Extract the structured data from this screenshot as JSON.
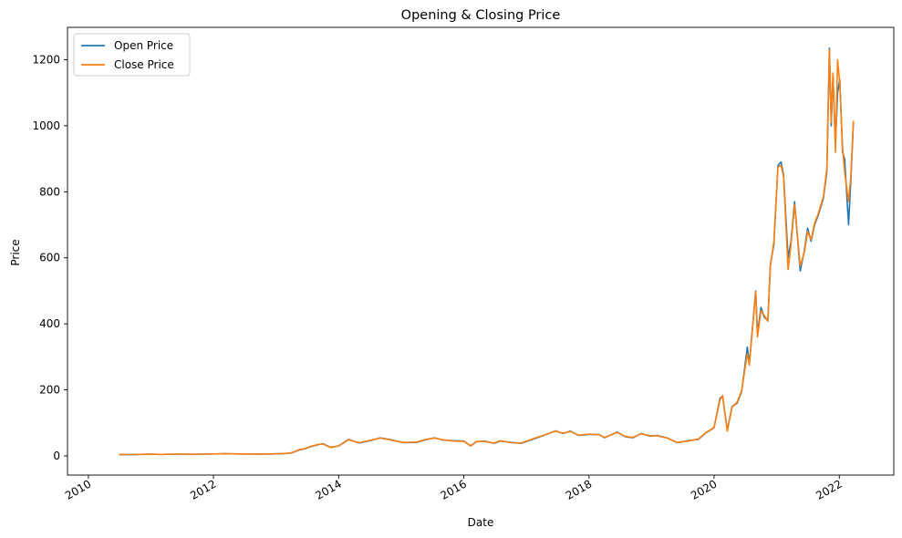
{
  "chart_data": {
    "type": "line",
    "title": "Opening & Closing Price",
    "xlabel": "Date",
    "ylabel": "Price",
    "xlim": [
      "2009-09-01",
      "2022-11-15"
    ],
    "ylim": [
      -58,
      1298
    ],
    "x_ticks": [
      "2010",
      "2012",
      "2014",
      "2016",
      "2018",
      "2020",
      "2022"
    ],
    "y_ticks": [
      0,
      200,
      400,
      600,
      800,
      1000,
      1200
    ],
    "grid": false,
    "legend_position": "top-left",
    "series": [
      {
        "name": "Open Price",
        "color": "#1f77b4",
        "points": [
          [
            "2010-06-29",
            3.8
          ],
          [
            "2010-10-01",
            4.2
          ],
          [
            "2010-12-15",
            5.5
          ],
          [
            "2011-03-01",
            4.7
          ],
          [
            "2011-06-01",
            5.6
          ],
          [
            "2011-09-01",
            5.1
          ],
          [
            "2011-12-01",
            5.5
          ],
          [
            "2012-03-01",
            6.8
          ],
          [
            "2012-06-01",
            6.2
          ],
          [
            "2012-09-01",
            5.7
          ],
          [
            "2012-12-01",
            5.8
          ],
          [
            "2013-03-01",
            7.5
          ],
          [
            "2013-04-01",
            9.0
          ],
          [
            "2013-05-15",
            18.0
          ],
          [
            "2013-06-15",
            21.0
          ],
          [
            "2013-07-15",
            27.0
          ],
          [
            "2013-09-01",
            34.0
          ],
          [
            "2013-10-01",
            37.0
          ],
          [
            "2013-11-15",
            26.0
          ],
          [
            "2013-12-31",
            30.0
          ],
          [
            "2014-02-15",
            45.0
          ],
          [
            "2014-03-01",
            50.0
          ],
          [
            "2014-05-01",
            39.0
          ],
          [
            "2014-07-01",
            46.0
          ],
          [
            "2014-09-01",
            55.0
          ],
          [
            "2014-11-01",
            49.0
          ],
          [
            "2015-01-15",
            40.0
          ],
          [
            "2015-04-01",
            41.0
          ],
          [
            "2015-06-01",
            50.0
          ],
          [
            "2015-07-15",
            55.0
          ],
          [
            "2015-09-01",
            48.0
          ],
          [
            "2015-11-01",
            46.0
          ],
          [
            "2016-01-01",
            45.0
          ],
          [
            "2016-02-10",
            30.0
          ],
          [
            "2016-03-15",
            43.0
          ],
          [
            "2016-05-01",
            45.0
          ],
          [
            "2016-06-25",
            38.0
          ],
          [
            "2016-08-01",
            45.0
          ],
          [
            "2016-10-01",
            41.0
          ],
          [
            "2016-12-01",
            38.0
          ],
          [
            "2017-02-15",
            52.0
          ],
          [
            "2017-04-01",
            60.0
          ],
          [
            "2017-06-20",
            76.0
          ],
          [
            "2017-08-01",
            68.0
          ],
          [
            "2017-09-15",
            75.0
          ],
          [
            "2017-11-01",
            62.0
          ],
          [
            "2018-01-01",
            65.0
          ],
          [
            "2018-03-01",
            65.0
          ],
          [
            "2018-04-01",
            55.0
          ],
          [
            "2018-06-15",
            72.0
          ],
          [
            "2018-08-01",
            58.0
          ],
          [
            "2018-09-15",
            55.0
          ],
          [
            "2018-11-01",
            68.0
          ],
          [
            "2018-12-24",
            60.0
          ],
          [
            "2019-02-01",
            62.0
          ],
          [
            "2019-04-01",
            55.0
          ],
          [
            "2019-06-01",
            40.0
          ],
          [
            "2019-08-01",
            46.0
          ],
          [
            "2019-10-01",
            50.0
          ],
          [
            "2019-11-15",
            70.0
          ],
          [
            "2020-01-01",
            85.0
          ],
          [
            "2020-02-05",
            175.0
          ],
          [
            "2020-02-20",
            180.0
          ],
          [
            "2020-03-18",
            78.0
          ],
          [
            "2020-04-15",
            150.0
          ],
          [
            "2020-05-15",
            160.0
          ],
          [
            "2020-06-10",
            195.0
          ],
          [
            "2020-07-13",
            330.0
          ],
          [
            "2020-07-25",
            280.0
          ],
          [
            "2020-08-31",
            500.0
          ],
          [
            "2020-09-10",
            370.0
          ],
          [
            "2020-10-01",
            450.0
          ],
          [
            "2020-10-20",
            420.0
          ],
          [
            "2020-11-10",
            410.0
          ],
          [
            "2020-11-25",
            580.0
          ],
          [
            "2020-12-15",
            640.0
          ],
          [
            "2021-01-08",
            880.0
          ],
          [
            "2021-01-26",
            890.0
          ],
          [
            "2021-02-10",
            850.0
          ],
          [
            "2021-03-08",
            600.0
          ],
          [
            "2021-03-25",
            650.0
          ],
          [
            "2021-04-15",
            770.0
          ],
          [
            "2021-05-18",
            560.0
          ],
          [
            "2021-06-10",
            620.0
          ],
          [
            "2021-06-30",
            690.0
          ],
          [
            "2021-07-20",
            650.0
          ],
          [
            "2021-08-10",
            700.0
          ],
          [
            "2021-09-01",
            730.0
          ],
          [
            "2021-09-30",
            780.0
          ],
          [
            "2021-10-20",
            860.0
          ],
          [
            "2021-11-04",
            1235.0
          ],
          [
            "2021-11-15",
            1000.0
          ],
          [
            "2021-11-25",
            1150.0
          ],
          [
            "2021-12-10",
            950.0
          ],
          [
            "2021-12-22",
            1100.0
          ],
          [
            "2022-01-04",
            1140.0
          ],
          [
            "2022-01-20",
            920.0
          ],
          [
            "2022-02-01",
            900.0
          ],
          [
            "2022-02-24",
            700.0
          ],
          [
            "2022-03-10",
            840.0
          ],
          [
            "2022-03-24",
            1010.0
          ]
        ]
      },
      {
        "name": "Close Price",
        "color": "#ff7f0e",
        "points": [
          [
            "2010-06-29",
            4.8
          ],
          [
            "2010-10-01",
            4.4
          ],
          [
            "2010-12-15",
            5.3
          ],
          [
            "2011-03-01",
            4.8
          ],
          [
            "2011-06-01",
            5.5
          ],
          [
            "2011-09-01",
            5.0
          ],
          [
            "2011-12-01",
            5.6
          ],
          [
            "2012-03-01",
            6.7
          ],
          [
            "2012-06-01",
            6.1
          ],
          [
            "2012-09-01",
            5.8
          ],
          [
            "2012-12-01",
            6.0
          ],
          [
            "2013-03-01",
            7.6
          ],
          [
            "2013-04-01",
            9.5
          ],
          [
            "2013-05-15",
            19.0
          ],
          [
            "2013-06-15",
            21.5
          ],
          [
            "2013-07-15",
            28.0
          ],
          [
            "2013-09-01",
            34.5
          ],
          [
            "2013-10-01",
            36.0
          ],
          [
            "2013-11-15",
            25.5
          ],
          [
            "2013-12-31",
            30.5
          ],
          [
            "2014-02-15",
            46.0
          ],
          [
            "2014-03-01",
            49.0
          ],
          [
            "2014-05-01",
            40.0
          ],
          [
            "2014-07-01",
            47.0
          ],
          [
            "2014-09-01",
            54.0
          ],
          [
            "2014-11-01",
            48.0
          ],
          [
            "2015-01-15",
            41.0
          ],
          [
            "2015-04-01",
            42.0
          ],
          [
            "2015-06-01",
            51.0
          ],
          [
            "2015-07-15",
            54.0
          ],
          [
            "2015-09-01",
            49.0
          ],
          [
            "2015-11-01",
            45.0
          ],
          [
            "2016-01-01",
            44.0
          ],
          [
            "2016-02-10",
            31.0
          ],
          [
            "2016-03-15",
            44.0
          ],
          [
            "2016-05-01",
            44.0
          ],
          [
            "2016-06-25",
            39.0
          ],
          [
            "2016-08-01",
            46.0
          ],
          [
            "2016-10-01",
            40.0
          ],
          [
            "2016-12-01",
            39.0
          ],
          [
            "2017-02-15",
            53.0
          ],
          [
            "2017-04-01",
            61.0
          ],
          [
            "2017-06-20",
            75.0
          ],
          [
            "2017-08-01",
            69.0
          ],
          [
            "2017-09-15",
            74.0
          ],
          [
            "2017-11-01",
            63.0
          ],
          [
            "2018-01-01",
            66.0
          ],
          [
            "2018-03-01",
            64.0
          ],
          [
            "2018-04-01",
            56.0
          ],
          [
            "2018-06-15",
            71.0
          ],
          [
            "2018-08-01",
            59.0
          ],
          [
            "2018-09-15",
            56.0
          ],
          [
            "2018-11-01",
            67.0
          ],
          [
            "2018-12-24",
            61.0
          ],
          [
            "2019-02-01",
            61.0
          ],
          [
            "2019-04-01",
            54.0
          ],
          [
            "2019-06-01",
            41.0
          ],
          [
            "2019-08-01",
            45.0
          ],
          [
            "2019-10-01",
            51.0
          ],
          [
            "2019-11-15",
            71.0
          ],
          [
            "2020-01-01",
            86.0
          ],
          [
            "2020-02-05",
            170.0
          ],
          [
            "2020-02-20",
            183.0
          ],
          [
            "2020-03-18",
            75.0
          ],
          [
            "2020-04-15",
            148.0
          ],
          [
            "2020-05-15",
            163.0
          ],
          [
            "2020-06-10",
            198.0
          ],
          [
            "2020-07-13",
            310.0
          ],
          [
            "2020-07-25",
            275.0
          ],
          [
            "2020-08-31",
            498.0
          ],
          [
            "2020-09-10",
            360.0
          ],
          [
            "2020-10-01",
            440.0
          ],
          [
            "2020-10-20",
            425.0
          ],
          [
            "2020-11-10",
            408.0
          ],
          [
            "2020-11-25",
            575.0
          ],
          [
            "2020-12-15",
            650.0
          ],
          [
            "2021-01-08",
            875.0
          ],
          [
            "2021-01-26",
            880.0
          ],
          [
            "2021-02-10",
            845.0
          ],
          [
            "2021-03-08",
            565.0
          ],
          [
            "2021-03-25",
            640.0
          ],
          [
            "2021-04-15",
            760.0
          ],
          [
            "2021-05-18",
            575.0
          ],
          [
            "2021-06-10",
            615.0
          ],
          [
            "2021-06-30",
            680.0
          ],
          [
            "2021-07-20",
            655.0
          ],
          [
            "2021-08-10",
            705.0
          ],
          [
            "2021-09-01",
            735.0
          ],
          [
            "2021-09-30",
            785.0
          ],
          [
            "2021-10-20",
            870.0
          ],
          [
            "2021-11-04",
            1230.0
          ],
          [
            "2021-11-15",
            1010.0
          ],
          [
            "2021-11-25",
            1160.0
          ],
          [
            "2021-12-10",
            920.0
          ],
          [
            "2021-12-22",
            1200.0
          ],
          [
            "2022-01-04",
            1130.0
          ],
          [
            "2022-01-20",
            935.0
          ],
          [
            "2022-02-01",
            860.0
          ],
          [
            "2022-02-24",
            770.0
          ],
          [
            "2022-03-10",
            850.0
          ],
          [
            "2022-03-24",
            1015.0
          ]
        ]
      }
    ]
  }
}
